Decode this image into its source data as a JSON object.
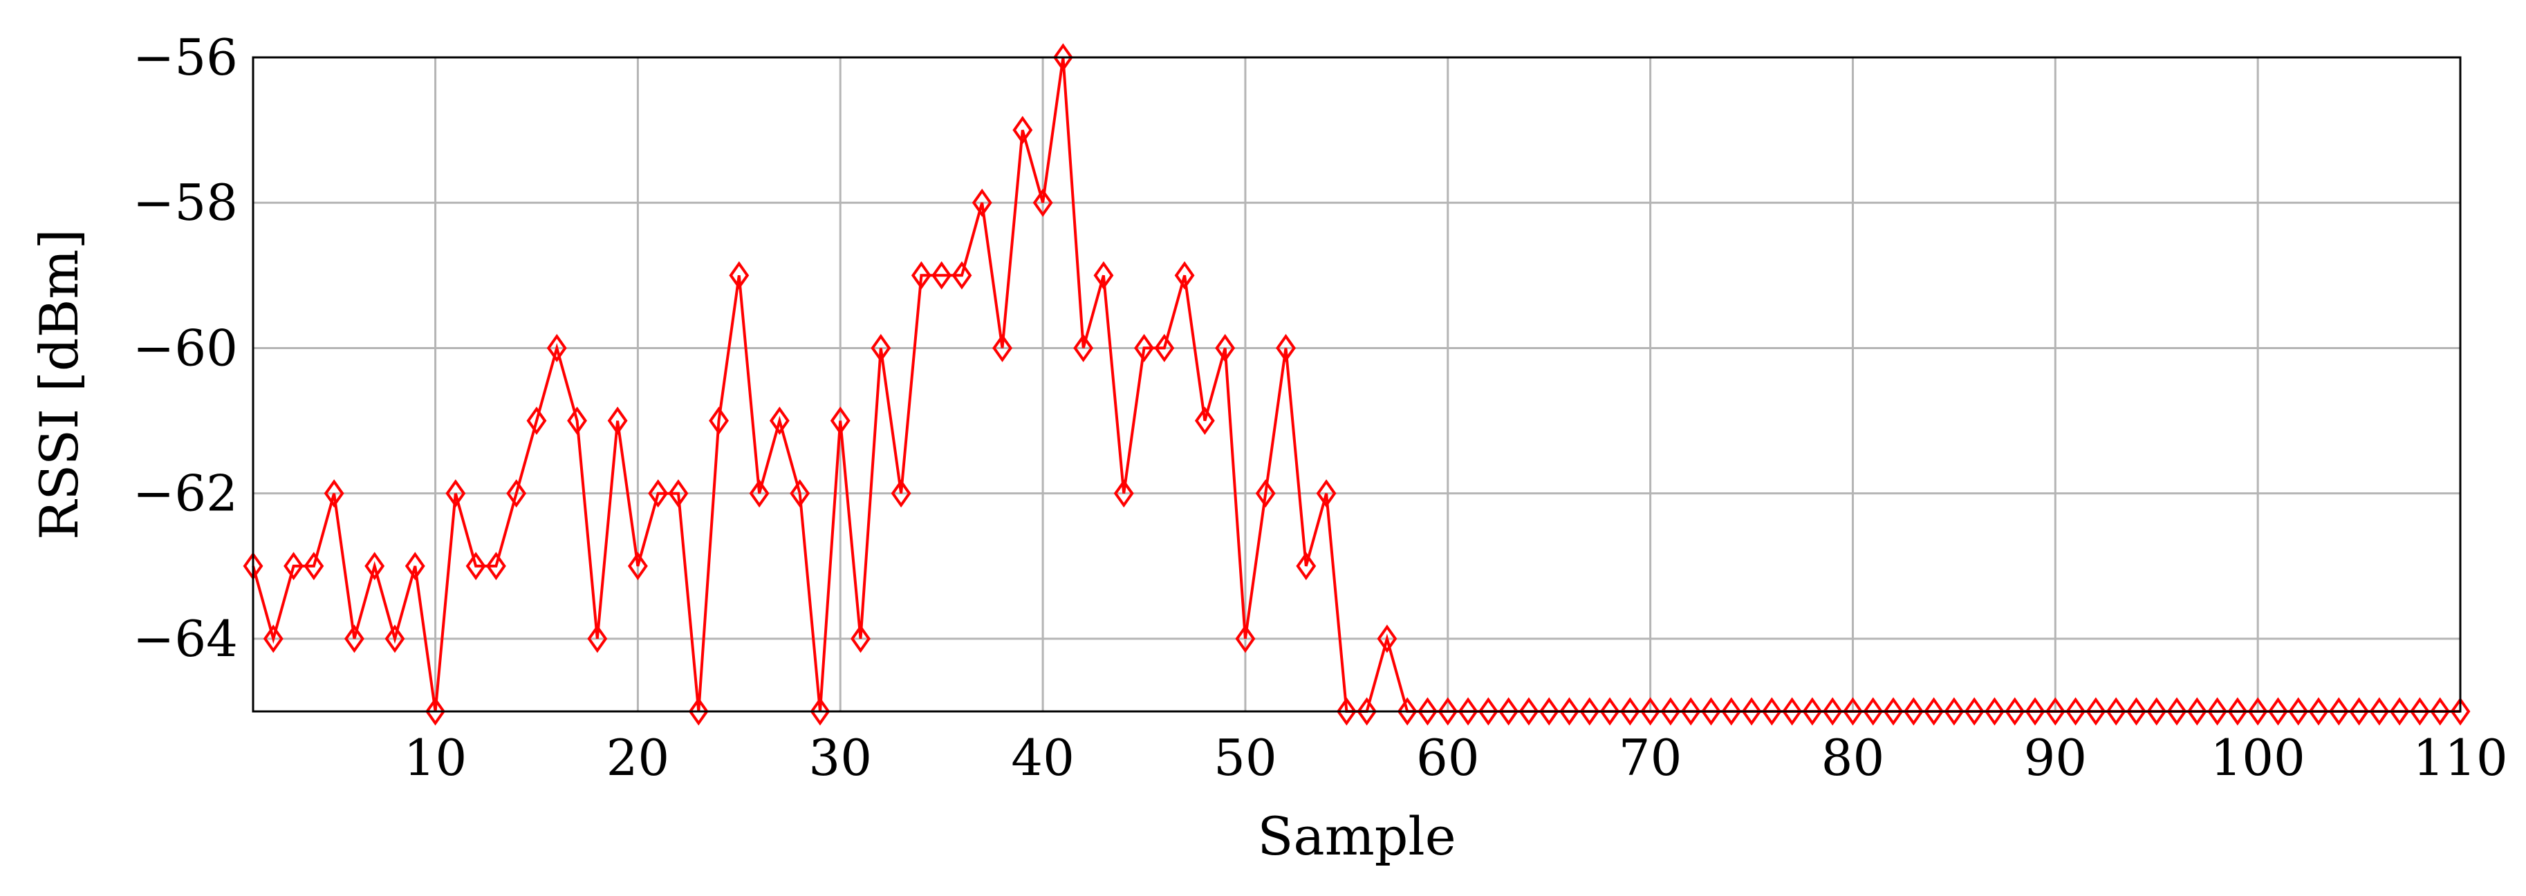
{
  "chart_data": {
    "type": "line",
    "title": "",
    "xlabel": "Sample",
    "ylabel": "RSSI [dBm]",
    "xlim": [
      1,
      110
    ],
    "ylim": [
      -65,
      -56
    ],
    "x_ticks": [
      10,
      20,
      30,
      40,
      50,
      60,
      70,
      80,
      90,
      100,
      110
    ],
    "y_ticks": [
      -64,
      -62,
      -60,
      -58,
      -56
    ],
    "y_tick_labels": [
      "−64",
      "−62",
      "−60",
      "−58",
      "−56"
    ],
    "grid": true,
    "legend": "none",
    "series": [
      {
        "color": "#ff0000",
        "marker": "diamond",
        "x": [
          1,
          2,
          3,
          4,
          5,
          6,
          7,
          8,
          9,
          10,
          11,
          12,
          13,
          14,
          15,
          16,
          17,
          18,
          19,
          20,
          21,
          22,
          23,
          24,
          25,
          26,
          27,
          28,
          29,
          30,
          31,
          32,
          33,
          34,
          35,
          36,
          37,
          38,
          39,
          40,
          41,
          42,
          43,
          44,
          45,
          46,
          47,
          48,
          49,
          50,
          51,
          52,
          53,
          54,
          55,
          56,
          57,
          58,
          59,
          60,
          61,
          62,
          63,
          64,
          65,
          66,
          67,
          68,
          69,
          70,
          71,
          72,
          73,
          74,
          75,
          76,
          77,
          78,
          79,
          80,
          81,
          82,
          83,
          84,
          85,
          86,
          87,
          88,
          89,
          90,
          91,
          92,
          93,
          94,
          95,
          96,
          97,
          98,
          99,
          100,
          101,
          102,
          103,
          104,
          105,
          106,
          107,
          108,
          109,
          110
        ],
        "y": [
          -63,
          -64,
          -63,
          -63,
          -62,
          -64,
          -63,
          -64,
          -63,
          -65,
          -62,
          -63,
          -63,
          -62,
          -61,
          -60,
          -61,
          -64,
          -61,
          -63,
          -62,
          -62,
          -65,
          -61,
          -59,
          -62,
          -61,
          -62,
          -65,
          -61,
          -64,
          -60,
          -62,
          -59,
          -59,
          -59,
          -58,
          -60,
          -57,
          -58,
          -56,
          -60,
          -59,
          -62,
          -60,
          -60,
          -59,
          -61,
          -60,
          -64,
          -62,
          -60,
          -63,
          -62,
          -65,
          -65,
          -64,
          -65,
          -65,
          -65,
          -65,
          -65,
          -65,
          -65,
          -65,
          -65,
          -65,
          -65,
          -65,
          -65,
          -65,
          -65,
          -65,
          -65,
          -65,
          -65,
          -65,
          -65,
          -65,
          -65,
          -65,
          -65,
          -65,
          -65,
          -65,
          -65,
          -65,
          -65,
          -65,
          -65,
          -65,
          -65,
          -65,
          -65,
          -65,
          -65,
          -65,
          -65,
          -65,
          -65,
          -65,
          -65,
          -65,
          -65,
          -65,
          -65,
          -65,
          -65,
          -65,
          -65
        ]
      }
    ]
  }
}
